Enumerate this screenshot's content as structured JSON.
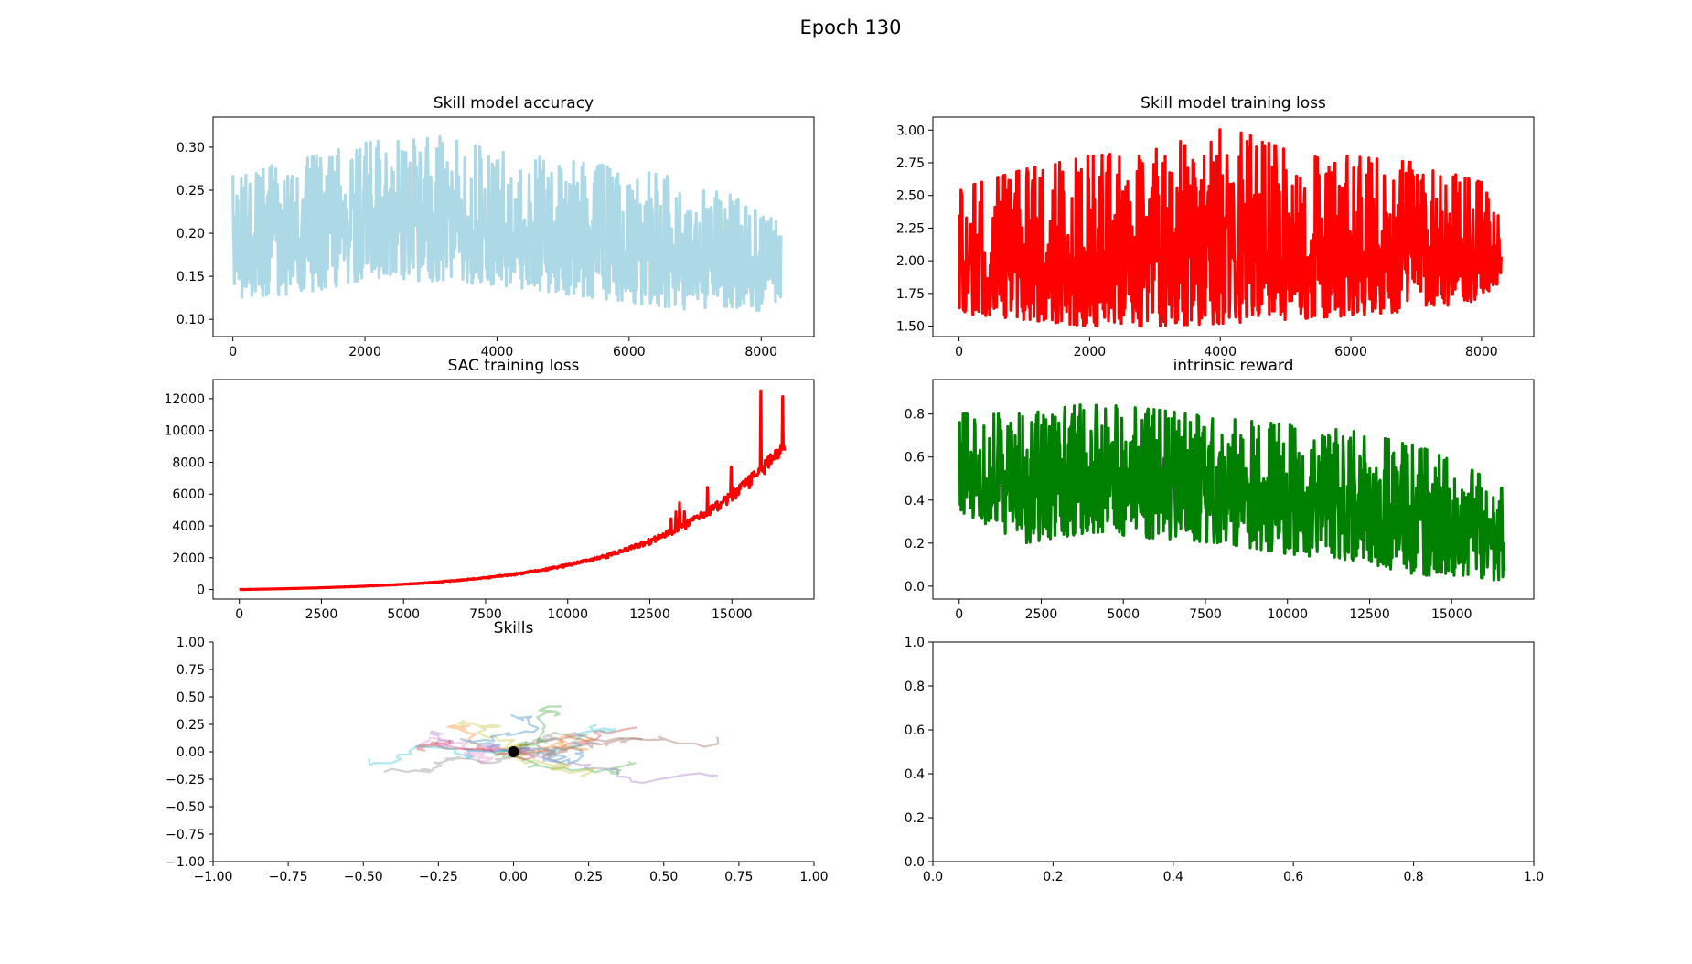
{
  "figure": {
    "title": "Epoch 130"
  },
  "chart_data": [
    {
      "type": "line",
      "title": "Skill model accuracy",
      "xlim": [
        -300,
        8800
      ],
      "ylim": [
        0.08,
        0.335
      ],
      "xticks": [
        0,
        2000,
        4000,
        6000,
        8000
      ],
      "xtick_labels": [
        "0",
        "2000",
        "4000",
        "6000",
        "8000"
      ],
      "yticks": [
        0.1,
        0.15,
        0.2,
        0.25,
        0.3
      ],
      "ytick_labels": [
        "0.10",
        "0.15",
        "0.20",
        "0.25",
        "0.30"
      ],
      "series": [
        {
          "color": "#add8e6",
          "x_range": [
            0,
            8300
          ],
          "points": 1100,
          "envelope": {
            "x": [
              0,
              1000,
              2000,
              3000,
              4000,
              5000,
              6000,
              7000,
              7500,
              8000,
              8300
            ],
            "low": [
              0.125,
              0.13,
              0.145,
              0.145,
              0.14,
              0.13,
              0.12,
              0.11,
              0.115,
              0.11,
              0.125
            ],
            "high": [
              0.27,
              0.285,
              0.305,
              0.315,
              0.295,
              0.285,
              0.275,
              0.26,
              0.25,
              0.225,
              0.21
            ],
            "mid": [
              0.19,
              0.205,
              0.215,
              0.22,
              0.21,
              0.2,
              0.19,
              0.18,
              0.175,
              0.165,
              0.165
            ]
          }
        }
      ]
    },
    {
      "type": "line",
      "title": "Skill model training loss",
      "xlim": [
        -400,
        8800
      ],
      "ylim": [
        1.42,
        3.1
      ],
      "xticks": [
        0,
        2000,
        4000,
        6000,
        8000
      ],
      "xtick_labels": [
        "0",
        "2000",
        "4000",
        "6000",
        "8000"
      ],
      "yticks": [
        1.5,
        1.75,
        2.0,
        2.25,
        2.5,
        2.75,
        3.0
      ],
      "ytick_labels": [
        "1.50",
        "1.75",
        "2.00",
        "2.25",
        "2.50",
        "2.75",
        "3.00"
      ],
      "series": [
        {
          "color": "#ff0000",
          "x_range": [
            0,
            8300
          ],
          "points": 1100,
          "envelope": {
            "x": [
              0,
              1000,
              2000,
              3000,
              4000,
              5000,
              6000,
              7000,
              8000,
              8300
            ],
            "low": [
              1.6,
              1.55,
              1.5,
              1.5,
              1.52,
              1.55,
              1.58,
              1.62,
              1.7,
              1.85
            ],
            "high": [
              2.55,
              2.7,
              2.8,
              2.85,
              3.05,
              2.85,
              2.8,
              2.75,
              2.6,
              2.3
            ],
            "mid": [
              1.95,
              1.97,
              1.98,
              2.0,
              2.0,
              2.0,
              2.02,
              2.03,
              2.05,
              2.0
            ]
          }
        }
      ]
    },
    {
      "type": "line",
      "title": "SAC training loss",
      "xlim": [
        -800,
        17500
      ],
      "ylim": [
        -600,
        13200
      ],
      "xticks": [
        0,
        2500,
        5000,
        7500,
        10000,
        12500,
        15000
      ],
      "xtick_labels": [
        "0",
        "2500",
        "5000",
        "7500",
        "10000",
        "12500",
        "15000"
      ],
      "yticks": [
        0,
        2000,
        4000,
        6000,
        8000,
        10000,
        12000
      ],
      "ytick_labels": [
        "0",
        "2000",
        "4000",
        "6000",
        "8000",
        "10000",
        "12000"
      ],
      "series": [
        {
          "color": "#ff0000",
          "x_range": [
            0,
            16600
          ],
          "points": 900,
          "trend": {
            "kind": "exponential",
            "start": 0,
            "end": 9500,
            "peak": 12500
          }
        }
      ]
    },
    {
      "type": "line",
      "title": "intrinsic reward",
      "xlim": [
        -800,
        17500
      ],
      "ylim": [
        -0.06,
        0.96
      ],
      "xticks": [
        0,
        2500,
        5000,
        7500,
        10000,
        12500,
        15000
      ],
      "xtick_labels": [
        "0",
        "2500",
        "5000",
        "7500",
        "10000",
        "12500",
        "15000"
      ],
      "yticks": [
        0.0,
        0.2,
        0.4,
        0.6,
        0.8
      ],
      "ytick_labels": [
        "0.0",
        "0.2",
        "0.4",
        "0.6",
        "0.8"
      ],
      "series": [
        {
          "color": "#008000",
          "x_range": [
            0,
            16600
          ],
          "points": 1100,
          "envelope": {
            "x": [
              0,
              2000,
              4000,
              6000,
              8000,
              10000,
              12000,
              14000,
              15500,
              16600
            ],
            "low": [
              0.35,
              0.2,
              0.25,
              0.22,
              0.2,
              0.15,
              0.12,
              0.05,
              0.05,
              0.02
            ],
            "high": [
              0.8,
              0.8,
              0.85,
              0.82,
              0.78,
              0.75,
              0.72,
              0.65,
              0.55,
              0.45
            ],
            "mid": [
              0.5,
              0.5,
              0.5,
              0.48,
              0.45,
              0.42,
              0.38,
              0.33,
              0.28,
              0.22
            ]
          }
        }
      ]
    },
    {
      "type": "line",
      "title": "Skills",
      "frameless": true,
      "xlim": [
        -1.0,
        1.0
      ],
      "ylim": [
        -1.0,
        1.0
      ],
      "xticks": [
        -1.0,
        -0.75,
        -0.5,
        -0.25,
        0.0,
        0.25,
        0.5,
        0.75,
        1.0
      ],
      "xtick_labels": [
        "−1.00",
        "−0.75",
        "−0.50",
        "−0.25",
        "0.00",
        "0.25",
        "0.50",
        "0.75",
        "1.00"
      ],
      "yticks": [
        -1.0,
        -0.75,
        -0.5,
        -0.25,
        0.0,
        0.25,
        0.5,
        0.75,
        1.0
      ],
      "ytick_labels": [
        "−1.00",
        "−0.75",
        "−0.50",
        "−0.25",
        "0.00",
        "0.25",
        "0.50",
        "0.75",
        "1.00"
      ],
      "origin_marker": {
        "x": 0,
        "y": 0,
        "color": "#000000"
      },
      "trajectories": {
        "count": 20,
        "steps": 30,
        "alpha": 0.35,
        "colors": [
          "#1f77b4",
          "#ff7f0e",
          "#2ca02c",
          "#d62728",
          "#9467bd",
          "#8c564b",
          "#e377c2",
          "#7f7f7f",
          "#bcbd22",
          "#17becf"
        ]
      }
    },
    {
      "type": "line",
      "title": "",
      "xlim": [
        0,
        1
      ],
      "ylim": [
        0,
        1
      ],
      "xticks": [
        0,
        0.2,
        0.4,
        0.6,
        0.8,
        1.0
      ],
      "xtick_labels": [
        "0.0",
        "0.2",
        "0.4",
        "0.6",
        "0.8",
        "1.0"
      ],
      "yticks": [
        0,
        0.2,
        0.4,
        0.6,
        0.8,
        1.0
      ],
      "ytick_labels": [
        "0.0",
        "0.2",
        "0.4",
        "0.6",
        "0.8",
        "1.0"
      ],
      "series": []
    }
  ]
}
